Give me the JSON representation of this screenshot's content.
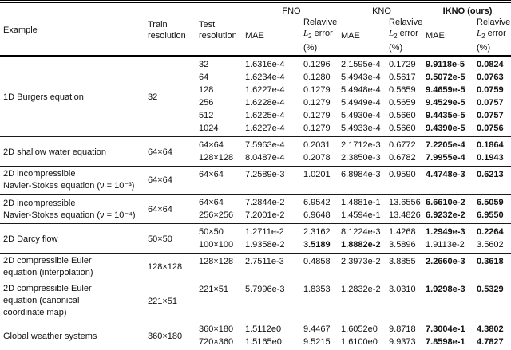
{
  "table": {
    "header": {
      "example": "Example",
      "train": "Train resolution",
      "test": "Test resolution",
      "mae": "MAE",
      "rel_line1": "Relavive",
      "rel_l": "L",
      "rel_sub": "2",
      "rel_rest": "error",
      "rel_pct": "(%)"
    },
    "groups": [
      {
        "label": "FNO",
        "bold": false
      },
      {
        "label": "KNO",
        "bold": false
      },
      {
        "label": "IKNO (ours)",
        "bold": true
      }
    ],
    "sections": [
      {
        "example": [
          "1D Burgers equation"
        ],
        "train": "32",
        "rows": [
          {
            "test": "32",
            "cells": [
              {
                "v": "1.6316e-4"
              },
              {
                "v": "0.1296"
              },
              {
                "v": "2.1595e-4"
              },
              {
                "v": "0.1729"
              },
              {
                "v": "9.9118e-5",
                "b": true
              },
              {
                "v": "0.0824",
                "b": true
              }
            ]
          },
          {
            "test": "64",
            "cells": [
              {
                "v": "1.6234e-4"
              },
              {
                "v": "0.1280"
              },
              {
                "v": "5.4943e-4"
              },
              {
                "v": "0.5617"
              },
              {
                "v": "9.5072e-5",
                "b": true
              },
              {
                "v": "0.0763",
                "b": true
              }
            ]
          },
          {
            "test": "128",
            "cells": [
              {
                "v": "1.6227e-4"
              },
              {
                "v": "0.1279"
              },
              {
                "v": "5.4948e-4"
              },
              {
                "v": "0.5659"
              },
              {
                "v": "9.4659e-5",
                "b": true
              },
              {
                "v": "0.0759",
                "b": true
              }
            ]
          },
          {
            "test": "256",
            "cells": [
              {
                "v": "1.6228e-4"
              },
              {
                "v": "0.1279"
              },
              {
                "v": "5.4949e-4"
              },
              {
                "v": "0.5659"
              },
              {
                "v": "9.4529e-5",
                "b": true
              },
              {
                "v": "0.0757",
                "b": true
              }
            ]
          },
          {
            "test": "512",
            "cells": [
              {
                "v": "1.6225e-4"
              },
              {
                "v": "0.1279"
              },
              {
                "v": "5.4930e-4"
              },
              {
                "v": "0.5660"
              },
              {
                "v": "9.4435e-5",
                "b": true
              },
              {
                "v": "0.0757",
                "b": true
              }
            ]
          },
          {
            "test": "1024",
            "cells": [
              {
                "v": "1.6227e-4"
              },
              {
                "v": "0.1279"
              },
              {
                "v": "5.4933e-4"
              },
              {
                "v": "0.5660"
              },
              {
                "v": "9.4390e-5",
                "b": true
              },
              {
                "v": "0.0756",
                "b": true
              }
            ]
          }
        ]
      },
      {
        "example": [
          "2D shallow water equation"
        ],
        "train": "64×64",
        "rows": [
          {
            "test": "64×64",
            "cells": [
              {
                "v": "7.5963e-4"
              },
              {
                "v": "0.2031"
              },
              {
                "v": "2.1712e-3"
              },
              {
                "v": "0.6772"
              },
              {
                "v": "7.2205e-4",
                "b": true
              },
              {
                "v": "0.1864",
                "b": true
              }
            ]
          },
          {
            "test": "128×128",
            "cells": [
              {
                "v": "8.0487e-4"
              },
              {
                "v": "0.2078"
              },
              {
                "v": "2.3850e-3"
              },
              {
                "v": "0.6782"
              },
              {
                "v": "7.9955e-4",
                "b": true
              },
              {
                "v": "0.1943",
                "b": true
              }
            ]
          }
        ]
      },
      {
        "example": [
          "2D incompressible",
          "Navier-Stokes equation (ν = 10⁻³)"
        ],
        "train": "64×64",
        "rows": [
          {
            "test": "64×64",
            "cells": [
              {
                "v": "7.2589e-3"
              },
              {
                "v": "1.0201"
              },
              {
                "v": "6.8984e-3"
              },
              {
                "v": "0.9590"
              },
              {
                "v": "4.4748e-3",
                "b": true
              },
              {
                "v": "0.6213",
                "b": true
              }
            ]
          }
        ]
      },
      {
        "example": [
          "2D incompressible",
          "Navier-Stokes equation (ν = 10⁻⁴)"
        ],
        "train": "64×64",
        "rows": [
          {
            "test": "64×64",
            "cells": [
              {
                "v": "7.2844e-2"
              },
              {
                "v": "6.9542"
              },
              {
                "v": "1.4881e-1"
              },
              {
                "v": "13.6556"
              },
              {
                "v": "6.6610e-2",
                "b": true
              },
              {
                "v": "6.5059",
                "b": true
              }
            ]
          },
          {
            "test": "256×256",
            "cells": [
              {
                "v": "7.2001e-2"
              },
              {
                "v": "6.9648"
              },
              {
                "v": "1.4594e-1"
              },
              {
                "v": "13.4826"
              },
              {
                "v": "6.9232e-2",
                "b": true
              },
              {
                "v": "6.9550",
                "b": true
              }
            ]
          }
        ]
      },
      {
        "example": [
          "2D Darcy flow"
        ],
        "train": "50×50",
        "rows": [
          {
            "test": "50×50",
            "cells": [
              {
                "v": "1.2711e-2"
              },
              {
                "v": "2.3162"
              },
              {
                "v": "8.1224e-3"
              },
              {
                "v": "1.4268"
              },
              {
                "v": "1.2949e-3",
                "b": true
              },
              {
                "v": "0.2264",
                "b": true
              }
            ]
          },
          {
            "test": "100×100",
            "cells": [
              {
                "v": "1.9358e-2"
              },
              {
                "v": "3.5189",
                "b": true
              },
              {
                "v": "1.8882e-2",
                "b": true
              },
              {
                "v": "3.5896"
              },
              {
                "v": "1.9113e-2"
              },
              {
                "v": "3.5602"
              }
            ]
          }
        ]
      },
      {
        "example": [
          "2D compressible Euler",
          "equation (interpolation)"
        ],
        "train": "128×128",
        "rows": [
          {
            "test": "128×128",
            "cells": [
              {
                "v": "2.7511e-3"
              },
              {
                "v": "0.4858"
              },
              {
                "v": "2.3973e-2"
              },
              {
                "v": "3.8855"
              },
              {
                "v": "2.2660e-3",
                "b": true
              },
              {
                "v": "0.3618",
                "b": true
              }
            ]
          }
        ]
      },
      {
        "example": [
          "2D compressible Euler",
          "equation (canonical",
          "coordinate map)"
        ],
        "train": "221×51",
        "rows": [
          {
            "test": "221×51",
            "cells": [
              {
                "v": "5.7996e-3"
              },
              {
                "v": "1.8353"
              },
              {
                "v": "1.2832e-2"
              },
              {
                "v": "3.0310"
              },
              {
                "v": "1.9298e-3",
                "b": true
              },
              {
                "v": "0.5329",
                "b": true
              }
            ]
          }
        ]
      },
      {
        "example": [
          "Global weather systems"
        ],
        "train": "360×180",
        "rows": [
          {
            "test": "360×180",
            "cells": [
              {
                "v": "1.5112e0"
              },
              {
                "v": "9.4467"
              },
              {
                "v": "1.6052e0"
              },
              {
                "v": "9.8718"
              },
              {
                "v": "7.3004e-1",
                "b": true
              },
              {
                "v": "4.3802",
                "b": true
              }
            ]
          },
          {
            "test": "720×360",
            "cells": [
              {
                "v": "1.5165e0"
              },
              {
                "v": "9.5215"
              },
              {
                "v": "1.6100e0"
              },
              {
                "v": "9.9373"
              },
              {
                "v": "7.8598e-1",
                "b": true
              },
              {
                "v": "4.7827",
                "b": true
              }
            ]
          }
        ]
      }
    ]
  }
}
